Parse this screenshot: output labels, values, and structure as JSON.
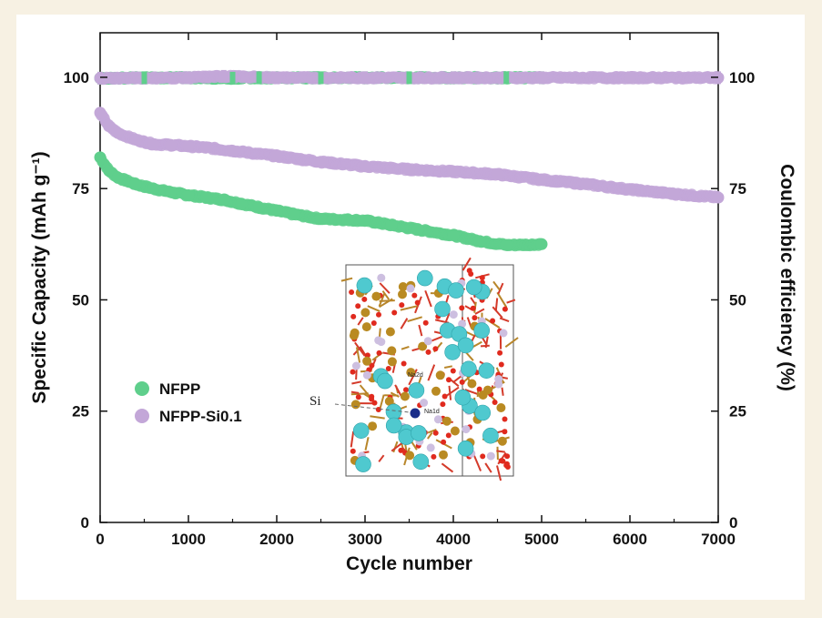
{
  "chart_data": {
    "type": "scatter",
    "xlabel": "Cycle number",
    "ylabel_left": "Specific Capacity (mAh g⁻¹)",
    "ylabel_right": "Coulombic efficiency (%)",
    "xlim": [
      0,
      7000
    ],
    "ylim_left": [
      0,
      110
    ],
    "ylim_right": [
      0,
      110
    ],
    "x_ticks": [
      "0",
      "1000",
      "2000",
      "3000",
      "4000",
      "5000",
      "6000",
      "7000"
    ],
    "y_ticks_left": [
      "0",
      "25",
      "50",
      "75",
      "100"
    ],
    "y_ticks_right": [
      "0",
      "25",
      "50",
      "75",
      "100"
    ],
    "grid": false,
    "legend_position": "left-bottom",
    "series": [
      {
        "name": "NFPP",
        "axis": "left",
        "metric": "capacity",
        "color": "#5fcf8c",
        "x": [
          0,
          100,
          200,
          400,
          600,
          800,
          1000,
          1200,
          1400,
          1600,
          1800,
          2000,
          2200,
          2500,
          2800,
          3000,
          3300,
          3600,
          4000,
          4300,
          4600,
          5000
        ],
        "values": [
          82,
          79,
          77.5,
          76,
          75,
          74.2,
          73.5,
          73,
          72.5,
          71.6,
          70.8,
          70,
          69.2,
          68.2,
          68,
          67.8,
          66.8,
          65.8,
          64.5,
          63.2,
          62.3,
          62.5
        ]
      },
      {
        "name": "NFPP-Si0.1",
        "axis": "left",
        "metric": "capacity",
        "color": "#c3a7d8",
        "x": [
          0,
          100,
          200,
          400,
          600,
          800,
          1000,
          1200,
          1500,
          2000,
          2500,
          3000,
          3500,
          4000,
          4500,
          5000,
          5500,
          6000,
          6500,
          7000
        ],
        "values": [
          92,
          89,
          87.5,
          86,
          85,
          84.8,
          84.5,
          84.2,
          83.5,
          82.3,
          81,
          80,
          79.3,
          78.8,
          78.2,
          77,
          76,
          74.8,
          73.8,
          73
        ]
      },
      {
        "name": "NFPP",
        "axis": "right",
        "metric": "coulombic_efficiency",
        "color": "#5fcf8c",
        "x": [
          0,
          500,
          1000,
          1500,
          1800,
          2500,
          3000,
          3500,
          4000,
          4600,
          5000
        ],
        "values": [
          99.8,
          99.9,
          99.9,
          99.8,
          99.9,
          99.9,
          99.9,
          99.9,
          99.9,
          99.9,
          99.9
        ]
      },
      {
        "name": "NFPP-Si0.1",
        "axis": "right",
        "metric": "coulombic_efficiency",
        "color": "#c3a7d8",
        "x": [
          0,
          1000,
          1400,
          2000,
          3000,
          4000,
          5000,
          6000,
          7000
        ],
        "values": [
          99.8,
          99.9,
          100.2,
          99.9,
          99.9,
          99.9,
          99.9,
          99.9,
          99.9
        ]
      }
    ],
    "legend": [
      {
        "label": "NFPP",
        "color": "#5fcf8c"
      },
      {
        "label": "NFPP-Si0.1",
        "color": "#c3a7d8"
      }
    ],
    "inset": {
      "label_si": "Si",
      "site_labels": [
        "Na2d",
        "Na1d"
      ]
    }
  }
}
